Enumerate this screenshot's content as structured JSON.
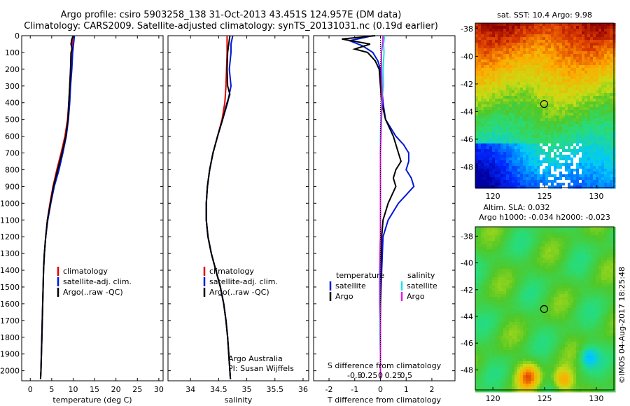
{
  "header": {
    "line1": "Argo profile: csiro 5903258_138 31-Oct-2013 43.451S 124.957E (DM data)",
    "line2": "Climatology: CARS2009. Satellite-adjusted climatology: synTS_20131031.nc (0.19d earlier)"
  },
  "colors": {
    "climatology": "#e00000",
    "satellite": "#0018d8",
    "argo": "#000000",
    "salinity_sat": "#20e0f0",
    "salinity_argo": "#e020e0"
  },
  "chart_data": [
    {
      "id": "temperature",
      "type": "line",
      "xlabel": "temperature (deg C)",
      "xlim": [
        -2,
        31
      ],
      "xticks": [
        0,
        5,
        10,
        15,
        20,
        25,
        30
      ],
      "xtick_labels": [
        "0",
        "5",
        "10",
        "15",
        "20",
        "25",
        "30"
      ],
      "ylim": [
        0,
        2060
      ],
      "yticks": [
        0,
        100,
        200,
        300,
        400,
        500,
        600,
        700,
        800,
        900,
        1000,
        1100,
        1200,
        1300,
        1400,
        1500,
        1600,
        1700,
        1800,
        1900,
        2000
      ],
      "ytick_labels": [
        "0",
        "100",
        "200",
        "300",
        "400",
        "500",
        "600",
        "700",
        "800",
        "900",
        "1000",
        "1100",
        "1200",
        "1300",
        "1400",
        "1500",
        "1600",
        "1700",
        "1800",
        "1900",
        "2000"
      ],
      "legend": [
        "climatology",
        "satellite-adj. clim.",
        "Argo(..raw -QC)"
      ],
      "series": [
        {
          "name": "climatology",
          "color": "#e00000",
          "depth": [
            0,
            50,
            100,
            200,
            300,
            400,
            500,
            600,
            700,
            800,
            900,
            1000,
            1100,
            1200,
            1300,
            1400,
            1600,
            1800,
            2000,
            2050
          ],
          "values": [
            9.9,
            9.8,
            9.6,
            9.4,
            9.2,
            9.0,
            8.7,
            8.1,
            7.2,
            6.2,
            5.3,
            4.6,
            4.0,
            3.6,
            3.3,
            3.1,
            2.9,
            2.7,
            2.5,
            2.4
          ]
        },
        {
          "name": "satellite-adj. clim.",
          "color": "#0018d8",
          "depth": [
            0,
            50,
            100,
            200,
            300,
            400,
            500,
            600,
            700,
            800,
            900,
            1000,
            1100,
            1200,
            1300,
            1400,
            1600,
            1800,
            2000,
            2050
          ],
          "values": [
            10.3,
            10.1,
            9.9,
            9.7,
            9.4,
            9.2,
            8.9,
            8.4,
            7.6,
            6.7,
            5.6,
            4.8,
            4.1,
            3.6,
            3.3,
            3.1,
            2.9,
            2.7,
            2.5,
            2.4
          ]
        },
        {
          "name": "Argo(..raw -QC)",
          "color": "#000000",
          "depth": [
            0,
            20,
            50,
            80,
            100,
            200,
            300,
            400,
            500,
            600,
            700,
            800,
            900,
            1000,
            1100,
            1200,
            1300,
            1400,
            1600,
            1800,
            2000,
            2050
          ],
          "values": [
            10.1,
            9.7,
            9.5,
            9.8,
            9.5,
            9.4,
            9.2,
            9.0,
            8.8,
            8.3,
            7.4,
            6.4,
            5.4,
            4.7,
            4.0,
            3.6,
            3.3,
            3.1,
            2.9,
            2.7,
            2.5,
            2.4
          ]
        }
      ]
    },
    {
      "id": "salinity",
      "type": "line",
      "xlabel": "salinity",
      "xlim": [
        33.6,
        36.1
      ],
      "xticks": [
        34,
        34.5,
        35,
        35.5,
        36
      ],
      "xtick_labels": [
        "34",
        "34.5",
        "35",
        "35.5",
        "36"
      ],
      "ylim": [
        0,
        2060
      ],
      "legend": [
        "climatology",
        "satellite-adj. clim.",
        "Argo(..raw -QC)"
      ],
      "annotation": [
        "Argo Australia",
        "PI: Susan Wijffels"
      ],
      "series": [
        {
          "name": "climatology",
          "color": "#e00000",
          "depth": [
            0,
            100,
            200,
            300,
            400,
            500,
            600,
            700,
            800,
            900,
            1000,
            1100,
            1200,
            1300,
            1400,
            1500,
            1600,
            1700,
            1800,
            1900,
            2000,
            2050
          ],
          "values": [
            34.65,
            34.65,
            34.64,
            34.63,
            34.61,
            34.56,
            34.48,
            34.4,
            34.34,
            34.3,
            34.28,
            34.28,
            34.31,
            34.37,
            34.45,
            34.53,
            34.59,
            34.63,
            34.66,
            34.68,
            34.7,
            34.71
          ]
        },
        {
          "name": "satellite-adj. clim.",
          "color": "#0018d8",
          "depth": [
            0,
            50,
            100,
            200,
            300,
            400,
            500,
            600,
            700,
            800,
            900,
            1000,
            1100,
            1200,
            1300,
            1400,
            1500,
            1600,
            1700,
            1800,
            1900,
            2000,
            2050
          ],
          "values": [
            34.75,
            34.72,
            34.72,
            34.69,
            34.72,
            34.66,
            34.57,
            34.48,
            34.4,
            34.34,
            34.3,
            34.28,
            34.28,
            34.31,
            34.37,
            34.45,
            34.53,
            34.59,
            34.63,
            34.66,
            34.68,
            34.7,
            34.71
          ]
        },
        {
          "name": "Argo(..raw -QC)",
          "color": "#000000",
          "depth": [
            0,
            50,
            100,
            200,
            300,
            350,
            400,
            500,
            600,
            700,
            800,
            900,
            1000,
            1100,
            1200,
            1300,
            1400,
            1500,
            1600,
            1700,
            1800,
            1900,
            2000,
            2050
          ],
          "values": [
            34.7,
            34.68,
            34.66,
            34.65,
            34.66,
            34.7,
            34.65,
            34.57,
            34.48,
            34.4,
            34.34,
            34.3,
            34.28,
            34.28,
            34.31,
            34.37,
            34.45,
            34.53,
            34.59,
            34.63,
            34.66,
            34.68,
            34.7,
            34.71
          ]
        }
      ]
    },
    {
      "id": "differences",
      "type": "line",
      "xlabel": "T difference from climatology",
      "xlim": [
        -2.6,
        2.9
      ],
      "xticks": [
        -2,
        -1,
        0,
        1,
        2
      ],
      "xtick_labels": [
        "-2",
        "-1",
        "0",
        "1",
        "2"
      ],
      "top_axis_label": "S difference from climatology",
      "top_ticks": [
        -0.5,
        -0.25,
        0,
        0.25,
        0.5
      ],
      "top_tick_labels": [
        "-0.5",
        "-0.25",
        "0",
        "0.25",
        "0.5"
      ],
      "ylim": [
        0,
        2060
      ],
      "legend_titles": [
        "temperature",
        "salinity"
      ],
      "legend": [
        "satellite",
        "Argo",
        "satellite",
        "Argo"
      ],
      "series": [
        {
          "name": "temperature satellite",
          "color": "#0018d8",
          "depth": [
            0,
            30,
            60,
            100,
            150,
            200,
            300,
            400,
            500,
            600,
            650,
            700,
            750,
            800,
            850,
            900,
            950,
            1000,
            1100,
            1200,
            1400,
            1600,
            1800,
            2000,
            2050
          ],
          "values": [
            -0.3,
            -1.2,
            -0.7,
            -0.3,
            -0.1,
            0.0,
            0.05,
            0.1,
            0.2,
            0.6,
            0.9,
            1.1,
            1.1,
            1.0,
            1.2,
            1.3,
            1.0,
            0.7,
            0.3,
            0.1,
            0.05,
            0.0,
            0.0,
            0.0,
            0.0
          ]
        },
        {
          "name": "temperature Argo",
          "color": "#000000",
          "depth": [
            0,
            20,
            50,
            80,
            100,
            150,
            200,
            300,
            400,
            500,
            600,
            700,
            750,
            800,
            850,
            900,
            1000,
            1100,
            1200,
            1400,
            1600,
            1800,
            2000,
            2050
          ],
          "values": [
            -0.2,
            -1.5,
            -0.4,
            -1.0,
            -0.5,
            -0.2,
            -0.05,
            0.0,
            0.05,
            0.2,
            0.5,
            0.7,
            0.8,
            0.6,
            0.5,
            0.6,
            0.3,
            0.1,
            0.05,
            0.0,
            0.0,
            0.0,
            0.0,
            0.0
          ]
        },
        {
          "name": "salinity satellite",
          "color": "#20e0f0",
          "depth": [
            0,
            50,
            100,
            200,
            300,
            400,
            500,
            600,
            700,
            800,
            900,
            1000,
            1100,
            1200,
            1300,
            1400,
            1500,
            1600,
            1700,
            1800,
            1900,
            2000,
            2050
          ],
          "values": [
            0.08,
            0.06,
            0.07,
            0.05,
            0.06,
            0.02,
            0.01,
            0.0,
            0.0,
            0.0,
            0.0,
            0.0,
            0.0,
            0.0,
            -0.01,
            -0.02,
            -0.02,
            -0.02,
            -0.01,
            -0.01,
            0.0,
            0.0,
            0.0
          ]
        },
        {
          "name": "salinity Argo",
          "color": "#e020e0",
          "depth": [
            0,
            50,
            100,
            200,
            300,
            400,
            500,
            600,
            700,
            800,
            900,
            1000,
            1100,
            1200,
            1300,
            1400,
            1500,
            1600,
            1700,
            1800,
            1900,
            2000,
            2050
          ],
          "values": [
            0.05,
            0.04,
            0.02,
            0.02,
            0.03,
            0.03,
            0.02,
            0.01,
            0.0,
            0.0,
            0.0,
            0.0,
            0.0,
            0.0,
            -0.01,
            -0.01,
            -0.01,
            -0.01,
            0.0,
            0.0,
            0.0,
            0.0,
            0.0
          ]
        }
      ]
    },
    {
      "id": "sst_map",
      "type": "heatmap",
      "title": "sat. SST: 10.4  Argo: 9.98",
      "xlim": [
        118.3,
        131.7
      ],
      "ylim": [
        -49.5,
        -37.6
      ],
      "xticks": [
        120,
        125,
        130
      ],
      "xtick_labels": [
        "120",
        "125",
        "130"
      ],
      "yticks": [
        -38,
        -40,
        -42,
        -44,
        -46,
        -48
      ],
      "ytick_labels": [
        "-38",
        "-40",
        "-42",
        "-44",
        "-46",
        "-48"
      ],
      "marker": {
        "lon": 124.957,
        "lat": -43.451
      }
    },
    {
      "id": "sla_map",
      "type": "heatmap",
      "title_lines": [
        "Altim. SLA: 0.032",
        "Argo h1000: -0.034  h2000: -0.023"
      ],
      "xlim": [
        118.3,
        131.7
      ],
      "ylim": [
        -49.5,
        -37.3
      ],
      "xticks": [
        120,
        125,
        130
      ],
      "xtick_labels": [
        "120",
        "125",
        "130"
      ],
      "yticks": [
        -38,
        -40,
        -42,
        -44,
        -46,
        -48
      ],
      "ytick_labels": [
        "-38",
        "-40",
        "-42",
        "-44",
        "-46",
        "-48"
      ],
      "marker": {
        "lon": 124.957,
        "lat": -43.451
      }
    }
  ],
  "watermark": "©IMOS 04-Aug-2017 18:25:48"
}
